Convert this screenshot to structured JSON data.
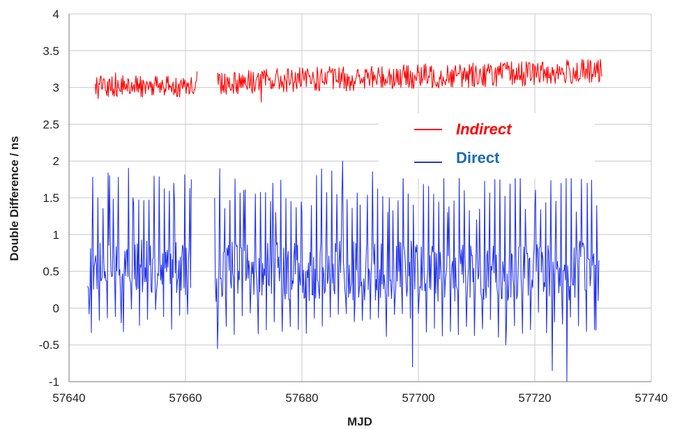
{
  "chart_data": {
    "type": "line",
    "xlabel": "MJD",
    "ylabel": "Double Difference / ns",
    "xlim": [
      57640,
      57740
    ],
    "ylim": [
      -1,
      4
    ],
    "x_ticks": [
      "57640",
      "57660",
      "57680",
      "57700",
      "57720",
      "57740"
    ],
    "y_ticks": [
      "-1",
      "-0.5",
      "0",
      "0.5",
      "1",
      "1.5",
      "2",
      "2.5",
      "3",
      "3.5",
      "4"
    ],
    "grid": true,
    "legend_placement": "right, inside plot",
    "series": [
      {
        "name": "Indirect",
        "color": "#ff0000",
        "legend_style": "bold italic",
        "segments": [
          {
            "x_start": 57644.5,
            "x_end": 57662.0,
            "mean": 3.02,
            "spread": 0.15
          },
          {
            "x_start": 57665.5,
            "x_end": 57731.5,
            "mean_start": 3.07,
            "mean_end": 3.22,
            "spread": 0.17
          }
        ],
        "samples": [
          [
            57644.5,
            3.05
          ],
          [
            57645,
            2.85
          ],
          [
            57646,
            3.12
          ],
          [
            57648,
            3.2
          ],
          [
            57650,
            2.95
          ],
          [
            57652,
            3.05
          ],
          [
            57654,
            3.0
          ],
          [
            57656,
            3.1
          ],
          [
            57658,
            2.9
          ],
          [
            57660,
            3.05
          ],
          [
            57662,
            3.22
          ],
          [
            57665.5,
            3.2
          ],
          [
            57670,
            3.15
          ],
          [
            57673,
            2.8
          ],
          [
            57676,
            3.1
          ],
          [
            57680,
            3.15
          ],
          [
            57685,
            3.2
          ],
          [
            57690,
            3.05
          ],
          [
            57695,
            3.25
          ],
          [
            57700,
            3.2
          ],
          [
            57705,
            3.3
          ],
          [
            57710,
            3.2
          ],
          [
            57715,
            3.25
          ],
          [
            57720,
            3.3
          ],
          [
            57725,
            3.2
          ],
          [
            57730,
            3.15
          ],
          [
            57731.5,
            3.15
          ]
        ]
      },
      {
        "name": "Direct",
        "color": "#2233ee",
        "legend_style": "bold",
        "segments": [
          {
            "x_start": 57643.2,
            "x_end": 57661.0,
            "mean": 0.55,
            "spread": 0.5
          },
          {
            "x_start": 57665.0,
            "x_end": 57731.0,
            "mean": 0.5,
            "spread": 0.55
          }
        ],
        "samples": [
          [
            57643.2,
            0.3
          ],
          [
            57643.5,
            -0.08
          ],
          [
            57645,
            1.5
          ],
          [
            57647,
            1.8
          ],
          [
            57649,
            -0.2
          ],
          [
            57651,
            1.5
          ],
          [
            57655,
            0.2
          ],
          [
            57658,
            1.7
          ],
          [
            57661,
            1.75
          ],
          [
            57665,
            1.5
          ],
          [
            57665.5,
            -0.55
          ],
          [
            57670,
            1.6
          ],
          [
            57675,
            1.7
          ],
          [
            57680,
            1.3
          ],
          [
            57687,
            2.0
          ],
          [
            57690,
            1.4
          ],
          [
            57695,
            1.5
          ],
          [
            57699,
            -0.8
          ],
          [
            57705,
            1.3
          ],
          [
            57710,
            1.2
          ],
          [
            57715,
            -0.5
          ],
          [
            57720,
            1.4
          ],
          [
            57723,
            -0.85
          ],
          [
            57725.5,
            -1.0
          ],
          [
            57729,
            1.7
          ],
          [
            57730.5,
            -0.3
          ],
          [
            57731,
            0.65
          ]
        ]
      }
    ]
  }
}
